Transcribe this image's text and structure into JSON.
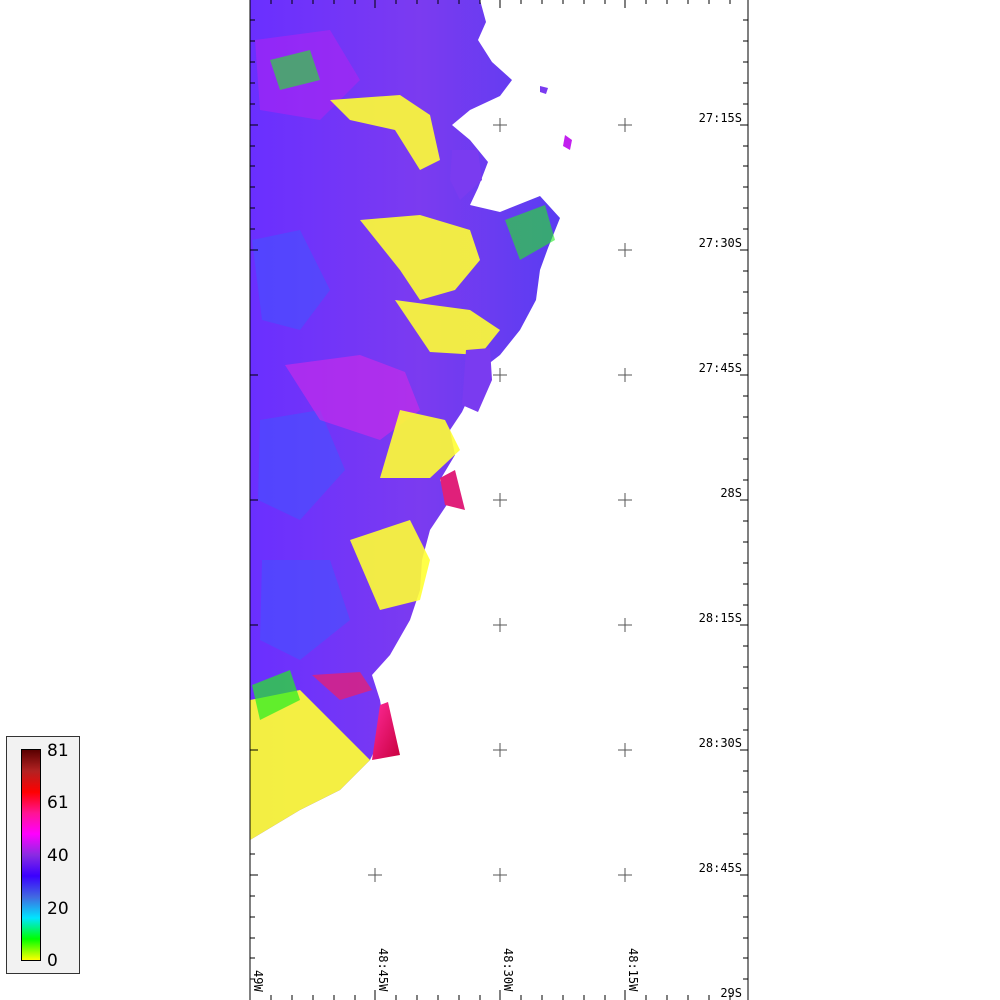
{
  "map": {
    "lat_labels": [
      "27:15S",
      "27:30S",
      "27:45S",
      "28S",
      "28:15S",
      "28:30S",
      "28:45S",
      "29S"
    ],
    "lon_labels": [
      "49W",
      "48:45W",
      "48:30W",
      "48:15W"
    ]
  },
  "legend": {
    "ticks": [
      "81",
      "61",
      "40",
      "20",
      "0"
    ],
    "colors": [
      "#ffff00",
      "#00ff00",
      "#00e5ff",
      "#4169e1",
      "#3a00ff",
      "#8a2be2",
      "#ff00ff",
      "#ff1493",
      "#ff0000",
      "#b22222",
      "#5a0000"
    ]
  }
}
